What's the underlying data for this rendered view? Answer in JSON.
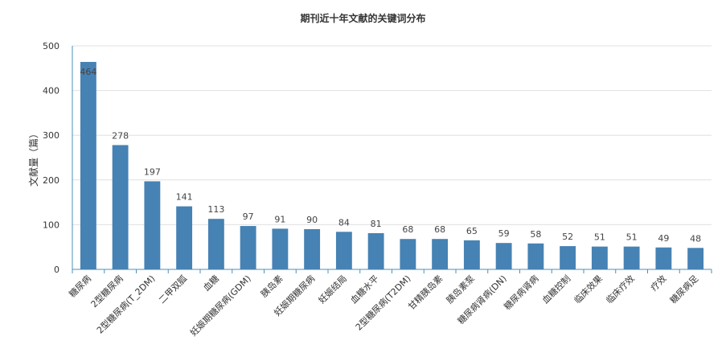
{
  "chart_data": {
    "type": "bar",
    "title": "期刊近十年文献的关键词分布",
    "ylabel": "文献量（篇）",
    "xlabel": "",
    "ylim": [
      0,
      500
    ],
    "yticks": [
      0,
      100,
      200,
      300,
      400,
      500
    ],
    "grid": true,
    "bar_color": "#4682b4",
    "categories": [
      "糖尿病",
      "2型糖尿病",
      "2型糖尿病(T_2DM)",
      "二甲双胍",
      "血糖",
      "妊娠期糖尿病(GDM)",
      "胰岛素",
      "妊娠期糖尿病",
      "妊娠结局",
      "血糖水平",
      "2型糖尿病(T2DM)",
      "甘精胰岛素",
      "胰岛素泵",
      "糖尿病肾病(DN)",
      "糖尿病肾病",
      "血糖控制",
      "临床效果",
      "临床疗效",
      "疗效",
      "糖尿病足"
    ],
    "values": [
      464,
      278,
      197,
      141,
      113,
      97,
      91,
      90,
      84,
      81,
      68,
      68,
      65,
      59,
      58,
      52,
      51,
      51,
      49,
      48
    ]
  }
}
